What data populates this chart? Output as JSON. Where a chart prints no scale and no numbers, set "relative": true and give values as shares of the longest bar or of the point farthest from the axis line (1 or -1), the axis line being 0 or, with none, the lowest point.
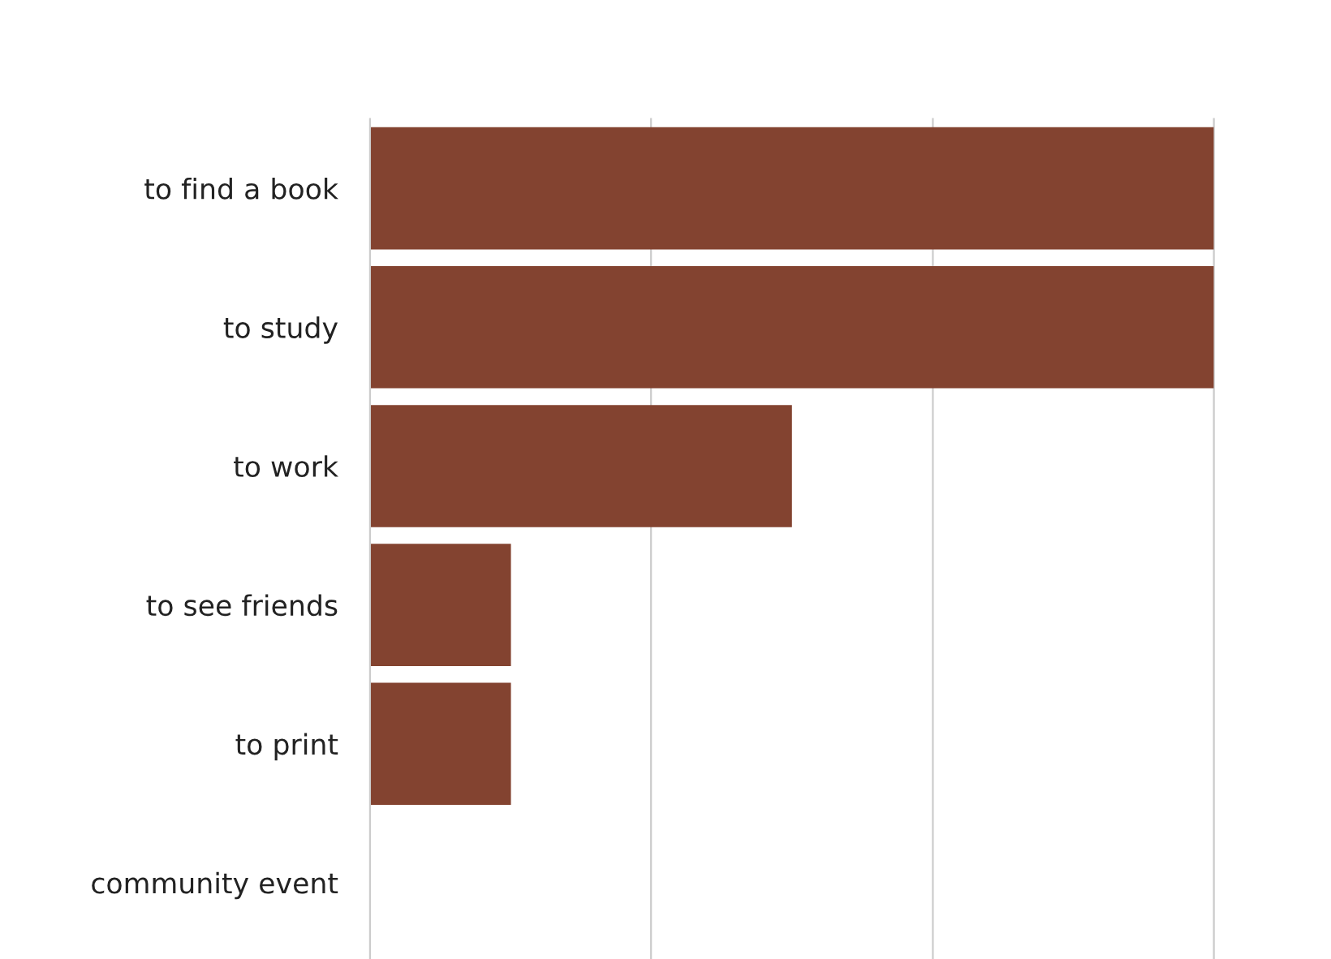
{
  "chart_data": {
    "type": "bar",
    "orientation": "horizontal",
    "relative": true,
    "categories": [
      "to find a book",
      "to study",
      "to work",
      "to see friends",
      "to print",
      "community event"
    ],
    "values": [
      1,
      1,
      0.5,
      0.167,
      0.167,
      0
    ],
    "color": "#834330",
    "legend": false,
    "ref_lines": [
      {
        "axis": "x",
        "value": 0.333,
        "color": "#cccccc"
      },
      {
        "axis": "x",
        "value": 0.667,
        "color": "#cccccc"
      },
      {
        "axis": "x",
        "value": 1,
        "color": "#cccccc"
      }
    ]
  }
}
